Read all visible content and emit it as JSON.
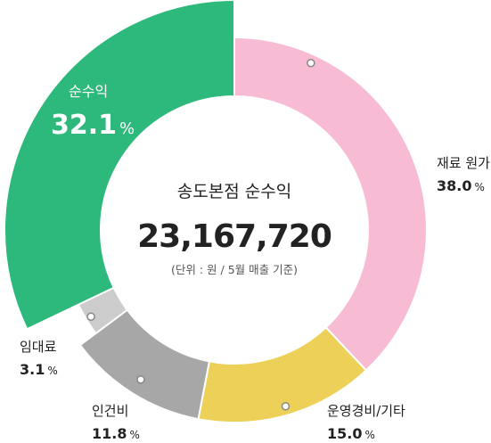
{
  "chart_data": {
    "type": "pie",
    "center": {
      "title": "송도본점 순수익",
      "value": "23,167,720",
      "note": "(단위 : 원 / 5월 매출 기준)"
    },
    "slices": [
      {
        "label": "재료 원가",
        "value": 38.0,
        "display": "38.0",
        "unit": "%",
        "color": "#f7bcd3"
      },
      {
        "label": "운영경비/기타",
        "value": 15.0,
        "display": "15.0",
        "unit": "%",
        "color": "#ecd058"
      },
      {
        "label": "인건비",
        "value": 11.8,
        "display": "11.8",
        "unit": "%",
        "color": "#a7a7a7"
      },
      {
        "label": "임대료",
        "value": 3.1,
        "display": "3.1",
        "unit": "%",
        "color": "#cccccc"
      },
      {
        "label": "순수익",
        "value": 32.1,
        "display": "32.1",
        "unit": "%",
        "color": "#2db87c"
      }
    ]
  }
}
